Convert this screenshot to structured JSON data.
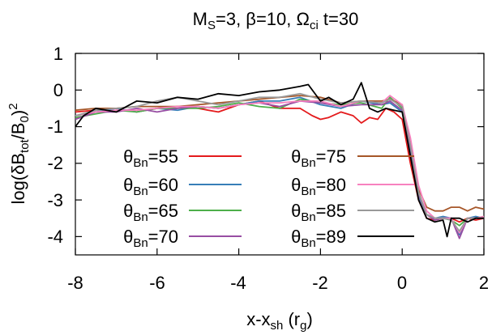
{
  "chart_data": {
    "type": "line",
    "title": {
      "prefix": "M",
      "prefix_sub": "S",
      "rest": "=3,  β=10, Ω",
      "omega_sub": "ci",
      "tail": " t=30"
    },
    "xlabel": {
      "main": "x-x",
      "sub": "sh",
      "after": " (r",
      "unit_sub": "g",
      "close": ")"
    },
    "ylabel": {
      "a": "log(δB",
      "a_sub": "tot",
      "b": "/B",
      "b_sub": "0",
      "c": ")",
      "sup": "2"
    },
    "xlim": [
      -8,
      2
    ],
    "ylim": [
      -4.5,
      1
    ],
    "x_ticks": [
      "-8",
      "-6",
      "-4",
      "-2",
      "0",
      "2"
    ],
    "y_ticks": [
      "1",
      "0",
      "-1",
      "-2",
      "-3",
      "-4"
    ],
    "legend_placement": "lower-center, inside plot",
    "legend_prefix": "θ",
    "legend_sub": "Bn",
    "series": [
      {
        "name": "55",
        "color": "#e41a1c",
        "x": [
          -8,
          -7.5,
          -7,
          -6.5,
          -6,
          -5.5,
          -5,
          -4.5,
          -4,
          -3.5,
          -3,
          -2.5,
          -2.2,
          -2,
          -1.8,
          -1.5,
          -1.2,
          -1,
          -0.8,
          -0.6,
          -0.4,
          -0.2,
          0,
          0.2,
          0.4,
          0.6,
          0.8,
          1,
          1.2,
          1.4,
          1.6,
          1.8,
          2
        ],
        "y": [
          -0.6,
          -0.55,
          -0.5,
          -0.6,
          -0.5,
          -0.45,
          -0.5,
          -0.6,
          -0.4,
          -0.3,
          -0.5,
          -0.5,
          -0.7,
          -0.8,
          -0.75,
          -0.6,
          -0.7,
          -0.9,
          -0.75,
          -0.8,
          -0.5,
          -0.6,
          -0.8,
          -2,
          -3.0,
          -3.5,
          -3.55,
          -3.5,
          -3.5,
          -3.6,
          -3.5,
          -3.55,
          -3.5
        ]
      },
      {
        "name": "60",
        "color": "#377eb8",
        "x": [
          -8,
          -7.5,
          -7,
          -6.5,
          -6,
          -5.5,
          -5,
          -4.5,
          -4,
          -3.5,
          -3,
          -2.5,
          -2,
          -1.5,
          -1,
          -0.5,
          -0.3,
          0,
          0.2,
          0.4,
          0.6,
          0.8,
          1,
          1.2,
          1.4,
          1.6,
          1.8,
          2
        ],
        "y": [
          -0.7,
          -0.6,
          -0.5,
          -0.6,
          -0.5,
          -0.55,
          -0.45,
          -0.5,
          -0.4,
          -0.3,
          -0.3,
          -0.2,
          -0.4,
          -0.5,
          -0.3,
          -0.4,
          -0.35,
          -0.6,
          -1.6,
          -2.9,
          -3.4,
          -3.5,
          -3.45,
          -3.5,
          -3.95,
          -3.5,
          -3.45,
          -3.5
        ]
      },
      {
        "name": "65",
        "color": "#4daf4a",
        "x": [
          -8,
          -7.5,
          -7,
          -6.5,
          -6,
          -5.5,
          -5,
          -4.5,
          -4,
          -3.5,
          -3,
          -2.5,
          -2,
          -1.5,
          -1,
          -0.5,
          -0.3,
          0,
          0.2,
          0.4,
          0.6,
          0.8,
          1,
          1.2,
          1.4,
          1.6,
          1.8,
          2
        ],
        "y": [
          -0.75,
          -0.65,
          -0.55,
          -0.6,
          -0.5,
          -0.5,
          -0.5,
          -0.45,
          -0.35,
          -0.45,
          -0.5,
          -0.25,
          -0.35,
          -0.4,
          -0.35,
          -0.5,
          -0.2,
          -0.5,
          -1.5,
          -2.8,
          -3.4,
          -3.5,
          -3.5,
          -3.55,
          -3.7,
          -3.5,
          -3.5,
          -3.45
        ]
      },
      {
        "name": "70",
        "color": "#984ea3",
        "x": [
          -8,
          -7.5,
          -7,
          -6.5,
          -6,
          -5.5,
          -5,
          -4.5,
          -4,
          -3.5,
          -3,
          -2.5,
          -2,
          -1.5,
          -1,
          -0.5,
          -0.3,
          0,
          0.2,
          0.4,
          0.6,
          0.8,
          1,
          1.2,
          1.4,
          1.6,
          1.8,
          2
        ],
        "y": [
          -0.8,
          -0.6,
          -0.6,
          -0.5,
          -0.6,
          -0.5,
          -0.45,
          -0.5,
          -0.4,
          -0.35,
          -0.45,
          -0.3,
          -0.35,
          -0.45,
          -0.4,
          -0.4,
          -0.3,
          -0.55,
          -1.55,
          -2.85,
          -3.4,
          -3.55,
          -3.5,
          -3.5,
          -4.05,
          -3.5,
          -3.5,
          -3.5
        ]
      },
      {
        "name": "75",
        "color": "#a65628",
        "x": [
          -8,
          -7.5,
          -7,
          -6.5,
          -6,
          -5.5,
          -5,
          -4.5,
          -4,
          -3.5,
          -3,
          -2.5,
          -2,
          -1.5,
          -1,
          -0.5,
          -0.3,
          0,
          0.2,
          0.4,
          0.6,
          0.8,
          1,
          1.2,
          1.4,
          1.6,
          1.8,
          2
        ],
        "y": [
          -0.55,
          -0.5,
          -0.5,
          -0.45,
          -0.45,
          -0.45,
          -0.4,
          -0.35,
          -0.3,
          -0.25,
          -0.2,
          -0.15,
          -0.2,
          -0.35,
          -0.3,
          -0.3,
          -0.25,
          -0.4,
          -1.4,
          -2.7,
          -3.2,
          -3.3,
          -3.3,
          -3.2,
          -3.2,
          -3.3,
          -3.2,
          -3.25
        ]
      },
      {
        "name": "80",
        "color": "#f781bf",
        "x": [
          -8,
          -7.5,
          -7,
          -6.5,
          -6,
          -5.5,
          -5,
          -4.5,
          -4,
          -3.5,
          -3,
          -2.5,
          -2,
          -1.5,
          -1,
          -0.5,
          -0.3,
          0,
          0.2,
          0.4,
          0.6,
          0.8,
          1,
          1.2,
          1.4,
          1.6,
          1.8,
          2
        ],
        "y": [
          -0.7,
          -0.6,
          -0.55,
          -0.55,
          -0.5,
          -0.45,
          -0.45,
          -0.5,
          -0.4,
          -0.35,
          -0.35,
          -0.3,
          -0.3,
          -0.45,
          -0.3,
          -0.35,
          -0.15,
          -0.4,
          -1.3,
          -2.6,
          -3.3,
          -3.5,
          -3.5,
          -3.5,
          -3.9,
          -3.5,
          -3.5,
          -3.45
        ]
      },
      {
        "name": "85",
        "color": "#999999",
        "x": [
          -8,
          -7.5,
          -7,
          -6.5,
          -6,
          -5.5,
          -5,
          -4.5,
          -4,
          -3.5,
          -3,
          -2.5,
          -2,
          -1.5,
          -1,
          -0.5,
          -0.3,
          0,
          0.2,
          0.4,
          0.6,
          0.8,
          1,
          1.2,
          1.4,
          1.6,
          1.8,
          2
        ],
        "y": [
          -0.7,
          -0.55,
          -0.5,
          -0.45,
          -0.3,
          -0.2,
          -0.3,
          -0.4,
          -0.3,
          -0.2,
          -0.2,
          -0.1,
          -0.25,
          -0.35,
          -0.3,
          -0.35,
          -0.25,
          -0.45,
          -1.5,
          -2.8,
          -3.4,
          -3.5,
          -3.5,
          -3.55,
          -3.85,
          -3.5,
          -3.5,
          -3.5
        ]
      },
      {
        "name": "89",
        "color": "#000000",
        "x": [
          -8,
          -7.8,
          -7.5,
          -7,
          -6.5,
          -6,
          -5.5,
          -5,
          -4.5,
          -4,
          -3.5,
          -3,
          -2.5,
          -2.3,
          -2,
          -1.8,
          -1.5,
          -1.2,
          -1,
          -0.8,
          -0.6,
          -0.4,
          -0.2,
          0,
          0.2,
          0.4,
          0.6,
          0.8,
          1,
          1.1,
          1.2,
          1.4,
          1.6,
          1.8,
          2
        ],
        "y": [
          -1.0,
          -0.7,
          -0.5,
          -0.6,
          -0.3,
          -0.35,
          -0.2,
          -0.25,
          -0.1,
          -0.15,
          -0.05,
          0.0,
          0.1,
          0.15,
          -0.3,
          -0.2,
          -0.4,
          -0.25,
          0.2,
          -0.5,
          -0.6,
          -0.5,
          -0.55,
          -0.6,
          -1.8,
          -3.0,
          -3.5,
          -3.6,
          -3.55,
          -4.0,
          -3.5,
          -3.5,
          -3.6,
          -3.5,
          -3.5
        ]
      }
    ]
  }
}
